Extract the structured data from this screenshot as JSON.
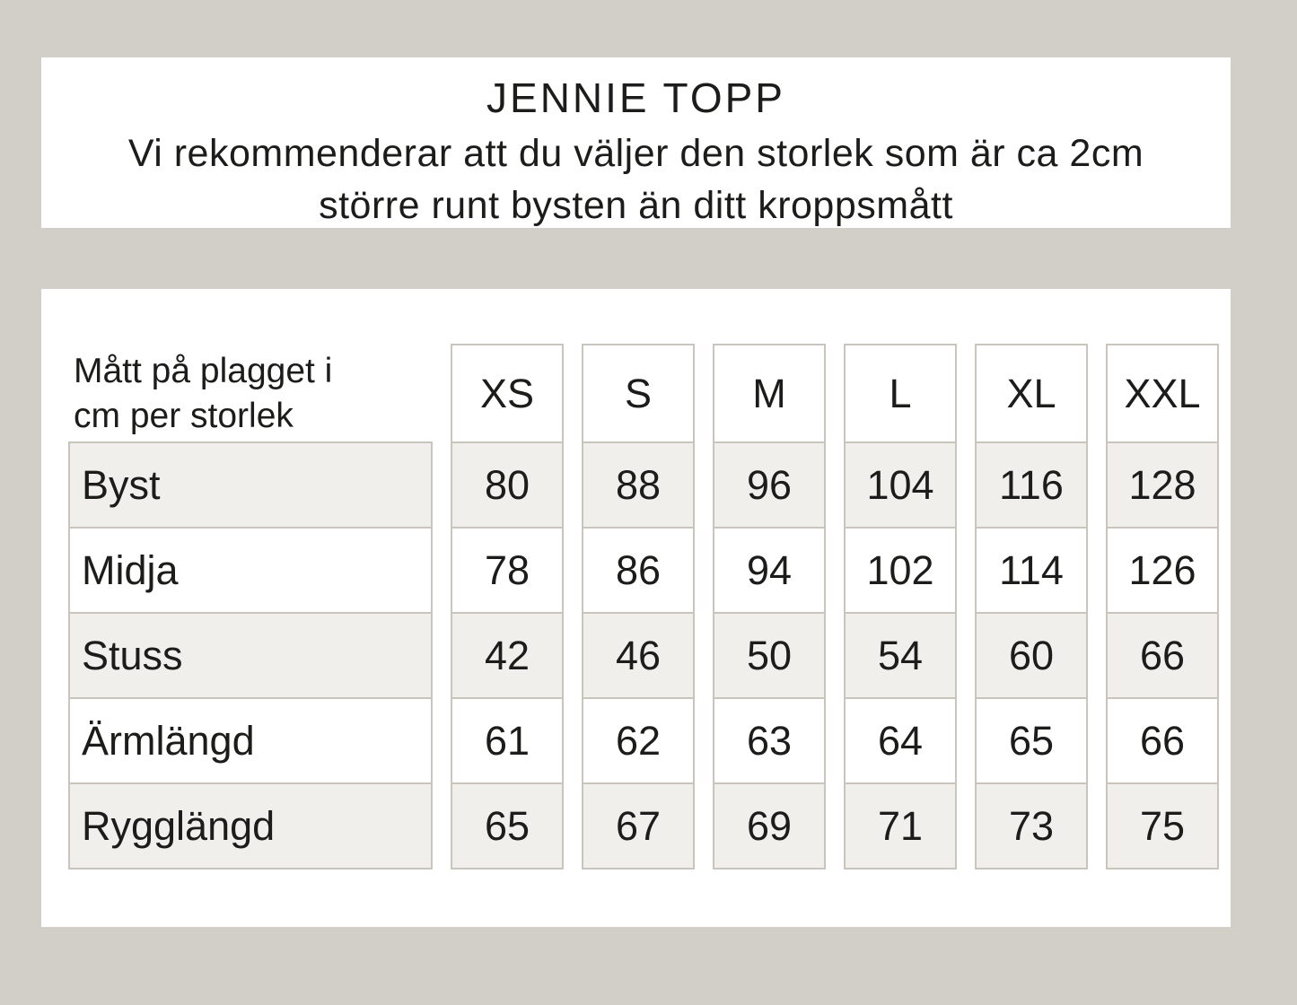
{
  "header": {
    "title": "JENNIE TOPP",
    "subtitle_line1": "Vi rekommenderar att du väljer den storlek som är ca 2cm",
    "subtitle_line2": "större runt bysten än ditt kroppsmått"
  },
  "table": {
    "corner_label_line1": "Mått på plagget i",
    "corner_label_line2": "cm per storlek"
  },
  "chart_data": {
    "type": "table",
    "title": "JENNIE TOPP",
    "subtitle": "Vi rekommenderar att du väljer den storlek som är ca 2cm större runt bysten än ditt kroppsmått",
    "corner_label": "Mått på plagget i cm per storlek",
    "columns": [
      "XS",
      "S",
      "M",
      "L",
      "XL",
      "XXL"
    ],
    "rows": [
      {
        "label": "Byst",
        "values": [
          80,
          88,
          96,
          104,
          116,
          128
        ]
      },
      {
        "label": "Midja",
        "values": [
          78,
          86,
          94,
          102,
          114,
          126
        ]
      },
      {
        "label": "Stuss",
        "values": [
          42,
          46,
          50,
          54,
          60,
          66
        ]
      },
      {
        "label": "Ärmlängd",
        "values": [
          61,
          62,
          63,
          64,
          65,
          66
        ]
      },
      {
        "label": "Rygglängd",
        "values": [
          65,
          67,
          69,
          71,
          73,
          75
        ]
      }
    ]
  },
  "colors": {
    "page_background": "#d2cfc8",
    "panel_background": "#ffffff",
    "shaded_row_background": "#f0efec",
    "cell_border": "#c9c5bd",
    "text": "#1c1c1a"
  }
}
